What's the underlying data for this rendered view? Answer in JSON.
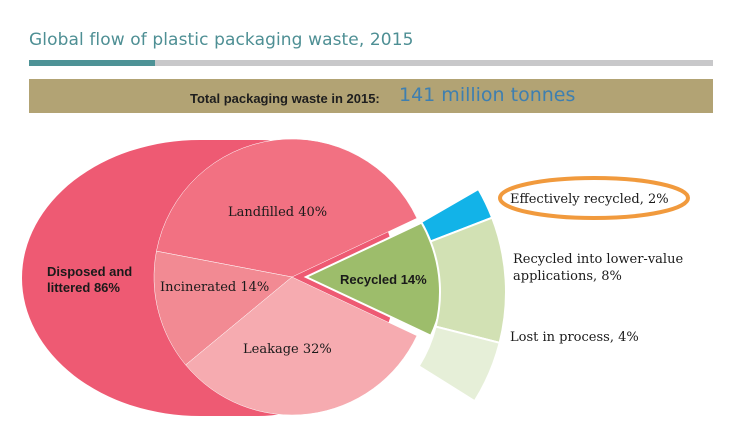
{
  "header": {
    "title": "Global flow of plastic packaging waste, 2015"
  },
  "banner": {
    "label": "Total packaging waste in 2015:",
    "value": "141 million tonnes"
  },
  "colors": {
    "disposed": "#ee5a73",
    "landfilled": "#f27182",
    "incinerated": "#f28a93",
    "leakage": "#f6abb0",
    "recycled": "#9dbd6b",
    "effectively_recycled": "#12b3e8",
    "lower_value": "#d2e1b4",
    "lost_in_process": "#e6efd8",
    "highlight_ring": "#f19a3d",
    "title": "#4e8f94",
    "banner": "#b2a374"
  },
  "chart_data": {
    "type": "pie",
    "title": "Global flow of plastic packaging waste, 2015",
    "subtitle": "Total packaging waste in 2015: 141 million tonnes",
    "slices": [
      {
        "label": "Disposed and littered 86%",
        "name": "Disposed and littered",
        "value": 86,
        "breakdown": [
          {
            "label": "Landfilled 40%",
            "name": "Landfilled",
            "value": 40
          },
          {
            "label": "Incinerated 14%",
            "name": "Incinerated",
            "value": 14
          },
          {
            "label": "Leakage 32%",
            "name": "Leakage",
            "value": 32
          }
        ]
      },
      {
        "label": "Recycled 14%",
        "name": "Recycled",
        "value": 14,
        "breakdown": [
          {
            "label": "Effectively recycled, 2%",
            "name": "Effectively recycled",
            "value": 2,
            "highlighted": true
          },
          {
            "label_lines": [
              "Recycled into lower-value",
              "applications, 8%"
            ],
            "name": "Recycled into lower-value applications",
            "value": 8
          },
          {
            "label": "Lost in process, 4%",
            "name": "Lost in process",
            "value": 4
          }
        ]
      }
    ]
  }
}
